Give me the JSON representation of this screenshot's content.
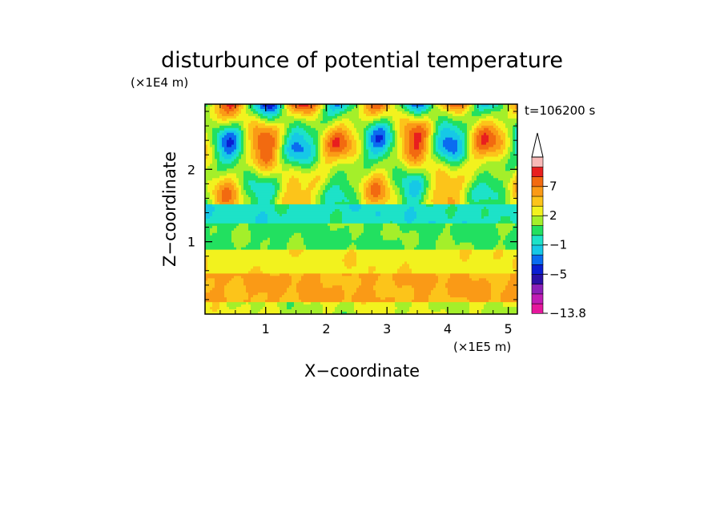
{
  "chart_data": {
    "type": "heatmap",
    "title": "disturbunce of potential temperature",
    "time_label": "t=106200 s",
    "xlabel": "X−coordinate",
    "ylabel": "Z−coordinate",
    "x_unit": "(×1E5 m)",
    "y_unit": "(×1E4 m)",
    "xlim": [
      0,
      5.15
    ],
    "ylim": [
      0,
      2.9
    ],
    "x_ticks": [
      1,
      2,
      3,
      4,
      5
    ],
    "y_ticks": [
      1,
      2
    ],
    "x_tick_labels": [
      "1",
      "2",
      "3",
      "4",
      "5"
    ],
    "y_tick_labels": [
      "1",
      "2"
    ],
    "colorbar": {
      "levels_bottom_to_top": [
        {
          "color": "#e6179d",
          "label": "−13.8"
        },
        {
          "color": "#c11cb5",
          "label": ""
        },
        {
          "color": "#8c1fb8",
          "label": ""
        },
        {
          "color": "#2a10a6",
          "label": ""
        },
        {
          "color": "#0a1ed2",
          "label": "−5"
        },
        {
          "color": "#0a6cf0",
          "label": ""
        },
        {
          "color": "#16c8e6",
          "label": ""
        },
        {
          "color": "#1de2c8",
          "label": "−1"
        },
        {
          "color": "#22e060",
          "label": ""
        },
        {
          "color": "#a4ef2a",
          "label": ""
        },
        {
          "color": "#f2f21e",
          "label": "2"
        },
        {
          "color": "#fcc41a",
          "label": ""
        },
        {
          "color": "#fa9a16",
          "label": ""
        },
        {
          "color": "#f26a10",
          "label": "7"
        },
        {
          "color": "#e81f1f",
          "label": ""
        },
        {
          "color": "#f8b9b7",
          "label": ""
        }
      ],
      "extend": "max"
    },
    "field_description_bands_bottom_to_top": [
      {
        "z": [
          0.0,
          0.15
        ],
        "dominant": "yellow-green with green patches"
      },
      {
        "z": [
          0.15,
          0.55
        ],
        "dominant": "orange"
      },
      {
        "z": [
          0.55,
          0.9
        ],
        "dominant": "yellow"
      },
      {
        "z": [
          0.9,
          1.25
        ],
        "dominant": "green"
      },
      {
        "z": [
          1.25,
          1.5
        ],
        "dominant": "cyan"
      },
      {
        "z": [
          1.5,
          2.9
        ],
        "dominant": "wave pattern: orange/yellow/green/cyan/blue"
      }
    ]
  }
}
